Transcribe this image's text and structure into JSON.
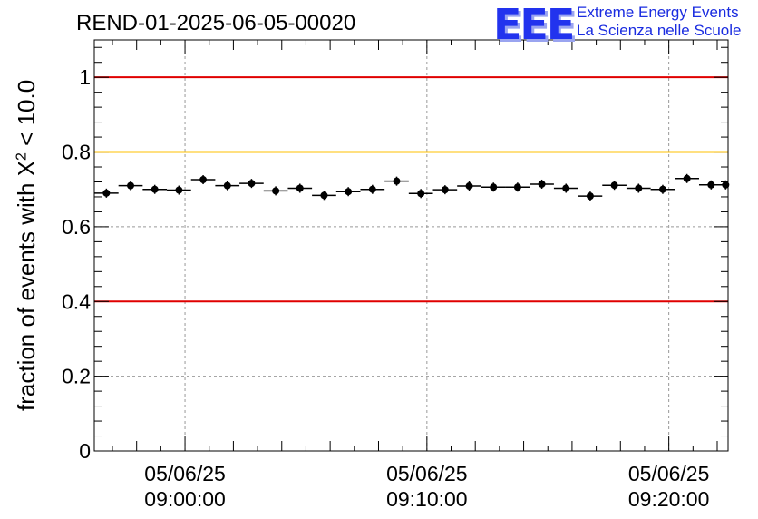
{
  "header": {
    "title": "REND-01-2025-06-05-00020"
  },
  "logo": {
    "mark": "EEE",
    "line1": "Extreme Energy Events",
    "line2": "La Scienza nelle Scuole",
    "color": "#1a2ce0"
  },
  "axis": {
    "ylabel_prefix": "fraction of events with ",
    "ylabel_symbol": "X",
    "ylabel_power": "2",
    "ylabel_suffix": " < 10.0"
  },
  "chart_data": {
    "type": "scatter",
    "title": "REND-01-2025-06-05-00020",
    "xlabel": "",
    "ylabel": "fraction of events with X² < 10.0",
    "x_unit": "minutes after 05/06/25 08:56:15",
    "xlim": [
      0,
      26.2
    ],
    "ylim": [
      0,
      1.1
    ],
    "grid": true,
    "bin_width_min": 1,
    "x": [
      0.5,
      1.5,
      2.5,
      3.5,
      4.5,
      5.5,
      6.5,
      7.5,
      8.5,
      9.5,
      10.5,
      11.5,
      12.5,
      13.5,
      14.5,
      15.5,
      16.5,
      17.5,
      18.5,
      19.5,
      20.5,
      21.5,
      22.5,
      23.5,
      24.5,
      25.5,
      26.1
    ],
    "y": [
      0.69,
      0.71,
      0.7,
      0.698,
      0.726,
      0.71,
      0.716,
      0.696,
      0.703,
      0.684,
      0.694,
      0.7,
      0.722,
      0.689,
      0.699,
      0.709,
      0.706,
      0.706,
      0.714,
      0.703,
      0.682,
      0.711,
      0.703,
      0.7,
      0.729,
      0.712,
      0.712
    ],
    "x_ticks": [
      {
        "value": 3.75,
        "date": "05/06/25",
        "time": "09:00:00"
      },
      {
        "value": 13.75,
        "date": "05/06/25",
        "time": "09:10:00"
      },
      {
        "value": 23.75,
        "date": "05/06/25",
        "time": "09:20:00"
      }
    ],
    "y_ticks": [
      {
        "value": 0,
        "label": "0"
      },
      {
        "value": 0.2,
        "label": "0.2"
      },
      {
        "value": 0.4,
        "label": "0.4"
      },
      {
        "value": 0.6,
        "label": "0.6"
      },
      {
        "value": 0.8,
        "label": "0.8"
      },
      {
        "value": 1.0,
        "label": "1"
      }
    ],
    "reference_lines": [
      {
        "value": 1.0,
        "color": "#e00000",
        "name": "upper-limit"
      },
      {
        "value": 0.8,
        "color": "#ffc000",
        "name": "warning-threshold"
      },
      {
        "value": 0.4,
        "color": "#e00000",
        "name": "lower-limit"
      }
    ]
  }
}
